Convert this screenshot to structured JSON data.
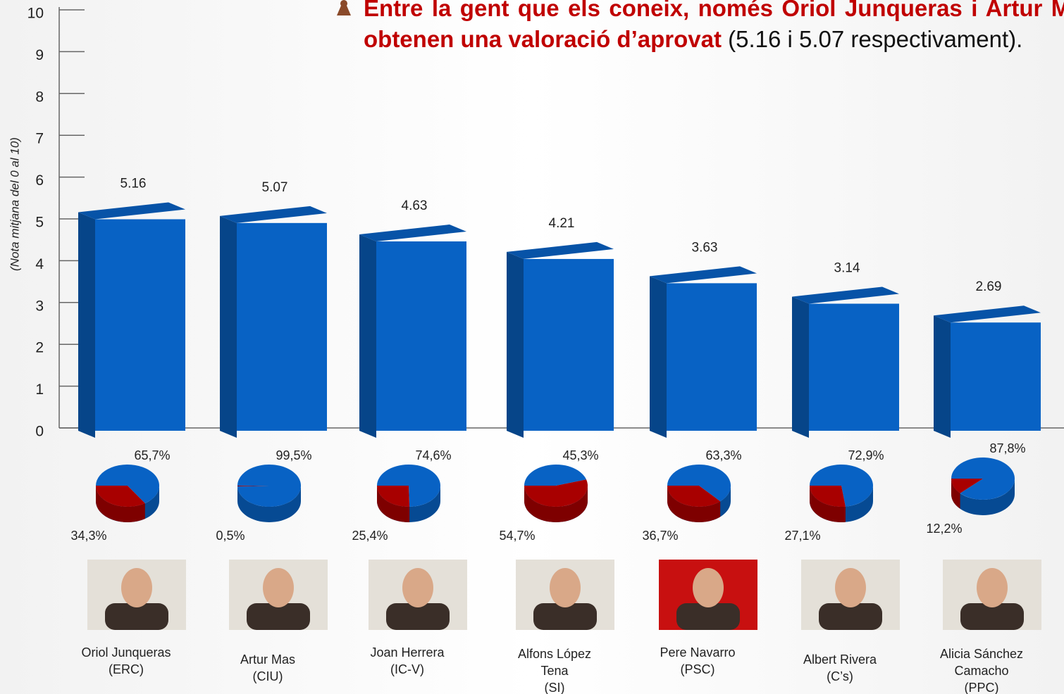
{
  "chart_data": {
    "type": "bar3d",
    "headline_bold": "Entre la gent que els coneix, només Oriol Junqueras i Artur Mas obtenen una valoració d’aprovat",
    "headline_rest": "(5.16 i 5.07 respectivament).",
    "y_label": "(Nota mitjana del 0 al 10)",
    "categories": [
      [
        "Oriol Junqueras",
        "(ERC)"
      ],
      [
        "Artur Mas",
        "(CIU)"
      ],
      [
        "Joan Herrera",
        "(IC-V)"
      ],
      [
        "Alfons López",
        "Tena",
        "(SI)"
      ],
      [
        "Pere Navarro",
        "(PSC)"
      ],
      [
        "Albert Rivera",
        "(C’s)"
      ],
      [
        "Alicia Sánchez",
        "Camacho",
        "(PPC)"
      ]
    ],
    "values": [
      5.16,
      5.07,
      4.63,
      4.21,
      3.63,
      3.14,
      2.69
    ],
    "color": "#0862c4",
    "ylim": [
      0,
      10
    ],
    "yticks": [
      0,
      1,
      2,
      3,
      4,
      5,
      6,
      7,
      8,
      9,
      10
    ],
    "pie_series": [
      {
        "color": "#0862c4",
        "values": [
          65.7,
          99.5,
          74.6,
          45.3,
          63.3,
          72.9,
          87.8
        ],
        "value_labels": [
          "65,7%",
          "99,5%",
          "74,6%",
          "45,3%",
          "63,3%",
          "72,9%",
          "87,8%"
        ]
      },
      {
        "color": "#a80000",
        "values": [
          34.3,
          0.5,
          25.4,
          54.7,
          36.7,
          27.1,
          12.2
        ],
        "value_labels": [
          "34,3%",
          "0,5%",
          "25,4%",
          "54,7%",
          "36,7%",
          "27,1%",
          "12,2%"
        ]
      }
    ]
  }
}
